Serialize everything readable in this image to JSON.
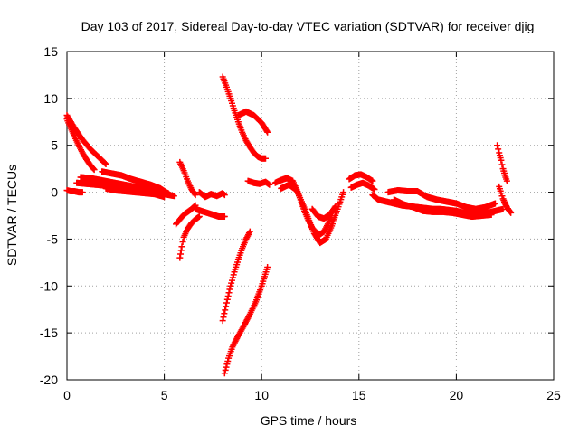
{
  "chart_data": {
    "type": "scatter",
    "title": "Day 103 of 2017, Sidereal Day-to-day VTEC variation (SDTVAR) for receiver djig",
    "xlabel": "GPS time / hours",
    "ylabel": "SDTVAR / TECUs",
    "xlim": [
      0,
      25
    ],
    "ylim": [
      -20,
      15
    ],
    "x_ticks": [
      0,
      5,
      10,
      15,
      20,
      25
    ],
    "y_ticks": [
      -20,
      -15,
      -10,
      -5,
      0,
      5,
      10,
      15
    ],
    "x_tick_labels": [
      "0",
      "5",
      "10",
      "15",
      "20",
      "25"
    ],
    "y_tick_labels": [
      "-20",
      "-15",
      "-10",
      "-5",
      "0",
      "5",
      "10",
      "15"
    ],
    "grid": true,
    "marker": "plus",
    "series_color": "#ff0000",
    "series": [
      {
        "x": [
          0.0,
          0.2,
          0.4,
          0.6,
          0.8,
          1.0,
          1.2,
          1.4,
          1.6,
          1.8,
          2.0
        ],
        "y": [
          8.2,
          7.5,
          6.8,
          6.2,
          5.6,
          5.1,
          4.6,
          4.2,
          3.8,
          3.4,
          3.0
        ]
      },
      {
        "x": [
          0.0,
          0.2,
          0.4,
          0.6,
          0.8,
          1.0,
          1.2,
          1.4
        ],
        "y": [
          7.8,
          6.8,
          5.9,
          5.0,
          4.2,
          3.5,
          2.9,
          2.4
        ]
      },
      {
        "x": [
          0.0,
          0.2,
          0.4,
          0.6,
          0.8
        ],
        "y": [
          0.2,
          0.1,
          0.1,
          0.0,
          0.0
        ]
      },
      {
        "x": [
          0.5,
          1.0,
          1.5,
          2.0,
          2.5,
          3.0,
          3.5,
          4.0,
          4.5,
          5.0,
          5.5
        ],
        "y": [
          1.0,
          0.9,
          0.8,
          0.7,
          0.6,
          0.5,
          0.3,
          0.2,
          0.0,
          -0.2,
          -0.4
        ]
      },
      {
        "x": [
          0.7,
          1.2,
          1.7,
          2.2,
          2.7,
          3.2,
          3.7,
          4.2,
          4.7,
          5.2
        ],
        "y": [
          1.6,
          1.5,
          1.3,
          1.1,
          0.9,
          0.7,
          0.5,
          0.4,
          0.2,
          -0.1
        ]
      },
      {
        "x": [
          1.8,
          2.3,
          2.8,
          3.3,
          3.8,
          4.3,
          4.8,
          5.3
        ],
        "y": [
          2.2,
          2.0,
          1.8,
          1.4,
          1.1,
          0.8,
          0.4,
          -0.3
        ]
      },
      {
        "x": [
          2.0,
          2.5,
          3.0,
          3.5,
          4.0,
          4.5,
          5.0
        ],
        "y": [
          0.4,
          0.2,
          0.1,
          0.0,
          -0.1,
          -0.2,
          -0.5
        ]
      },
      {
        "x": [
          5.8,
          6.0,
          6.2,
          6.4,
          6.6
        ],
        "y": [
          3.2,
          2.3,
          1.2,
          0.3,
          -0.3
        ]
      },
      {
        "x": [
          5.8,
          5.9,
          6.0,
          6.2,
          6.4,
          6.6,
          6.8
        ],
        "y": [
          -7.0,
          -5.8,
          -4.8,
          -3.9,
          -3.3,
          -2.9,
          -2.6
        ]
      },
      {
        "x": [
          5.6,
          5.8,
          6.0,
          6.2,
          6.4,
          6.6
        ],
        "y": [
          -3.4,
          -2.9,
          -2.4,
          -2.1,
          -1.8,
          -1.4
        ]
      },
      {
        "x": [
          6.6,
          6.9,
          7.2,
          7.5,
          7.8,
          8.1
        ],
        "y": [
          -1.8,
          -2.0,
          -2.2,
          -2.4,
          -2.6,
          -2.6
        ]
      },
      {
        "x": [
          6.8,
          7.1,
          7.4,
          7.7,
          8.0,
          8.1
        ],
        "y": [
          0.0,
          -0.5,
          -0.2,
          -0.4,
          -0.1,
          -0.3
        ]
      },
      {
        "x": [
          8.0,
          8.2,
          8.4,
          8.6,
          8.8,
          9.0,
          9.2,
          9.4,
          9.6,
          9.8,
          10.0,
          10.2
        ],
        "y": [
          12.3,
          11.2,
          10.0,
          8.7,
          7.5,
          6.4,
          5.5,
          4.8,
          4.2,
          3.8,
          3.6,
          3.6
        ]
      },
      {
        "x": [
          8.8,
          9.2,
          9.6,
          10.0,
          10.3
        ],
        "y": [
          8.2,
          8.6,
          8.2,
          7.4,
          6.4
        ]
      },
      {
        "x": [
          8.0,
          8.2,
          8.4,
          8.6,
          8.8,
          9.0,
          9.2,
          9.4
        ],
        "y": [
          -13.7,
          -11.8,
          -10.0,
          -8.5,
          -7.2,
          -6.0,
          -5.0,
          -4.2
        ]
      },
      {
        "x": [
          8.1,
          8.3,
          8.5,
          8.8,
          9.1,
          9.4,
          9.7,
          10.0,
          10.3
        ],
        "y": [
          -19.3,
          -17.7,
          -16.5,
          -15.3,
          -14.2,
          -13.0,
          -11.7,
          -10.0,
          -8.0
        ]
      },
      {
        "x": [
          9.3,
          9.6,
          9.9,
          10.2,
          10.4
        ],
        "y": [
          1.2,
          1.0,
          0.9,
          1.1,
          0.8
        ]
      },
      {
        "x": [
          10.7,
          11.0,
          11.3,
          11.6,
          11.8,
          12.0,
          12.2,
          12.4,
          12.6,
          12.8,
          13.0,
          13.2,
          13.4,
          13.6
        ],
        "y": [
          1.0,
          1.3,
          1.5,
          1.2,
          0.3,
          -0.8,
          -2.0,
          -3.0,
          -3.8,
          -4.3,
          -4.5,
          -4.2,
          -3.4,
          -2.5
        ]
      },
      {
        "x": [
          11.0,
          11.4,
          11.8,
          12.1,
          12.4,
          12.7,
          13.0,
          13.3,
          13.6,
          13.9,
          14.2
        ],
        "y": [
          0.4,
          0.8,
          0.2,
          -1.2,
          -2.8,
          -4.4,
          -5.4,
          -5.0,
          -3.6,
          -1.8,
          0.0
        ]
      },
      {
        "x": [
          12.6,
          12.9,
          13.2,
          13.5,
          13.8
        ],
        "y": [
          -1.8,
          -2.6,
          -2.8,
          -2.4,
          -1.5
        ]
      },
      {
        "x": [
          14.5,
          14.8,
          15.1,
          15.4,
          15.7
        ],
        "y": [
          1.4,
          1.8,
          1.9,
          1.6,
          1.2
        ]
      },
      {
        "x": [
          14.6,
          14.9,
          15.2,
          15.5,
          15.8
        ],
        "y": [
          0.5,
          0.8,
          1.0,
          0.7,
          0.3
        ]
      },
      {
        "x": [
          15.7,
          16.0,
          16.4,
          16.8,
          17.2,
          17.6,
          18.0,
          18.4,
          18.8,
          19.2,
          19.6,
          20.0,
          20.4,
          20.8,
          21.2,
          21.6,
          22.0,
          22.4
        ],
        "y": [
          -0.3,
          -0.8,
          -1.0,
          -1.2,
          -1.4,
          -1.5,
          -1.6,
          -1.7,
          -1.8,
          -1.8,
          -1.9,
          -2.0,
          -2.2,
          -2.3,
          -2.3,
          -2.2,
          -2.0,
          -1.8
        ]
      },
      {
        "x": [
          16.5,
          17.0,
          17.5,
          18.0,
          18.5,
          19.0,
          19.5,
          20.0,
          20.5,
          21.0,
          21.5,
          22.0
        ],
        "y": [
          0.0,
          0.2,
          0.1,
          0.1,
          -0.5,
          -0.8,
          -1.0,
          -1.2,
          -1.6,
          -1.8,
          -1.6,
          -1.2
        ]
      },
      {
        "x": [
          16.8,
          17.3,
          17.8,
          18.3,
          18.8,
          19.3,
          19.8,
          20.3,
          20.8,
          21.3,
          21.8
        ],
        "y": [
          -0.8,
          -1.3,
          -1.6,
          -2.0,
          -2.1,
          -2.1,
          -2.2,
          -2.4,
          -2.6,
          -2.5,
          -2.4
        ]
      },
      {
        "x": [
          22.1,
          22.2,
          22.3,
          22.4,
          22.5,
          22.6
        ],
        "y": [
          5.0,
          4.2,
          3.4,
          2.5,
          1.8,
          1.2
        ]
      },
      {
        "x": [
          22.2,
          22.3,
          22.4,
          22.5,
          22.6,
          22.7,
          22.8
        ],
        "y": [
          0.6,
          -0.1,
          -0.7,
          -1.2,
          -1.6,
          -1.9,
          -2.2
        ]
      }
    ]
  }
}
